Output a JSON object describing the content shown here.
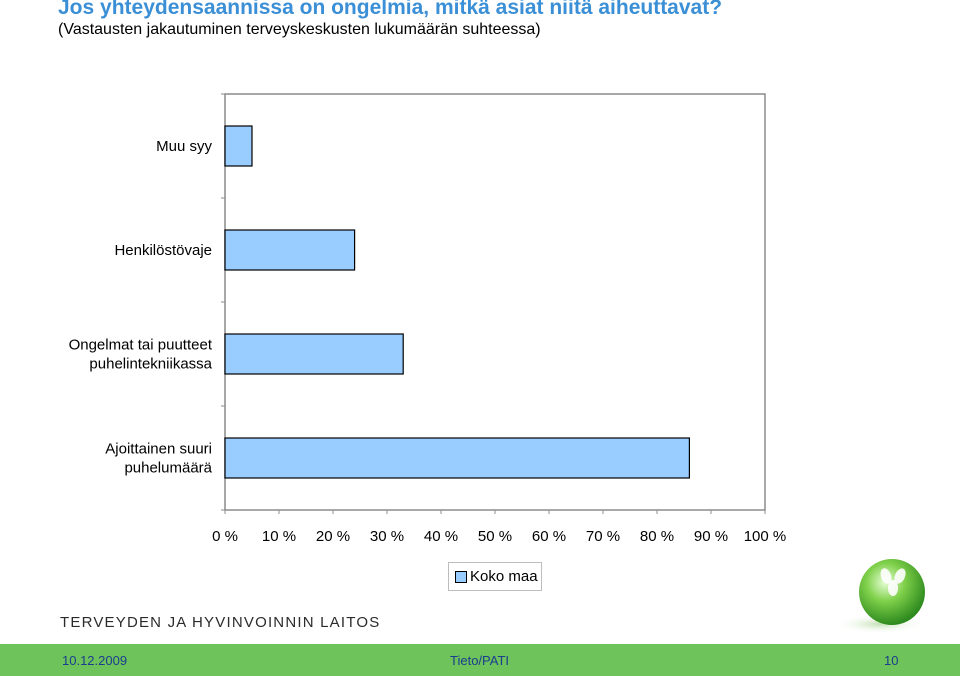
{
  "header": {
    "title": "Jos yhteydensaannissa on ongelmia, mitkä asiat niitä aiheuttavat?",
    "subtitle": "(Vastausten jakautuminen terveyskeskusten lukumäärän suhteessa)"
  },
  "chart_data": {
    "type": "bar",
    "orientation": "horizontal",
    "title": "Jos yhteydensaannissa on ongelmia, mitkä asiat niitä aiheuttavat?",
    "subtitle": "(Vastausten jakautuminen terveyskeskusten lukumäärän suhteessa)",
    "categories": [
      [
        "Muu syy"
      ],
      [
        "Henkilöstövaje"
      ],
      [
        "Ongelmat tai puutteet",
        "puhelintekniikassa"
      ],
      [
        "Ajoittainen suuri",
        "puhelumäärä"
      ]
    ],
    "series": [
      {
        "name": "Koko maa",
        "values": [
          5,
          24,
          33,
          86
        ],
        "color": "#99ccff"
      }
    ],
    "xlim": [
      0,
      100
    ],
    "xticks": [
      "0 %",
      "10 %",
      "20 %",
      "30 %",
      "40 %",
      "50 %",
      "60 %",
      "70 %",
      "80 %",
      "90 %",
      "100 %"
    ],
    "grid": false,
    "legend_position": "bottom"
  },
  "legend": {
    "label": "Koko maa"
  },
  "branding": {
    "organization": "TERVEYDEN JA HYVINVOINNIN LAITOS"
  },
  "footer": {
    "date": "10.12.2009",
    "source": "Tieto/PATI",
    "page": "10"
  },
  "colors": {
    "title": "#3b8fd6",
    "bar": "#99ccff",
    "footer": "#6ec35a",
    "footer_text": "#1b3d8f"
  }
}
